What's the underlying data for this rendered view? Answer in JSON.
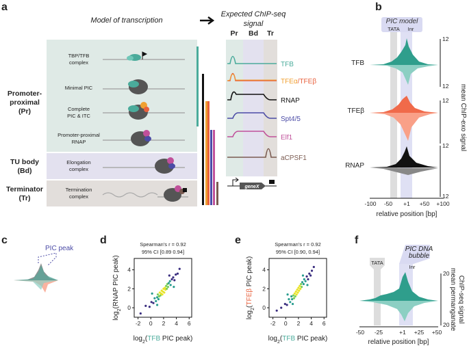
{
  "panel_a": {
    "letter": "a",
    "model_title": "Model of transcription",
    "signal_title": [
      "Expected ChIP-seq",
      "signal"
    ],
    "columns": [
      "Pr",
      "Bd",
      "Tr"
    ],
    "regions": [
      [
        "Promoter-",
        "proximal",
        "(Pr)"
      ],
      [
        "TU body",
        "(Bd)"
      ],
      [
        "Terminator",
        "(Tr)"
      ]
    ],
    "stages": [
      [
        "TBP/TFB",
        "complex"
      ],
      [
        "Minimal PIC"
      ],
      [
        "Complete",
        "PIC & ITC"
      ],
      [
        "Promoter-proximal",
        "RNAP"
      ],
      [
        "Elongation",
        "complex"
      ],
      [
        "Termination",
        "complex"
      ]
    ],
    "signals": [
      {
        "parts": [
          "TFB"
        ],
        "colors": [
          "#4aab9b"
        ]
      },
      {
        "parts": [
          "TFEα",
          "/",
          "TFEβ"
        ],
        "colors": [
          "#f0a030",
          "#e8603c",
          "#e8603c"
        ]
      },
      {
        "parts": [
          "RNAP"
        ],
        "colors": [
          "#111111"
        ]
      },
      {
        "parts": [
          "Spt4/5"
        ],
        "colors": [
          "#4b4ba6"
        ]
      },
      {
        "parts": [
          "Elf1"
        ],
        "colors": [
          "#c0509a"
        ]
      },
      {
        "parts": [
          "aCPSF1"
        ],
        "colors": [
          "#7a5a50"
        ]
      }
    ],
    "gene": "geneX"
  },
  "panel_b": {
    "letter": "b",
    "model": "PIC model",
    "tata": "TATA",
    "inr": "Inr",
    "rows": [
      "TFB",
      "TFEβ",
      "RNAP"
    ],
    "scale": [
      "12",
      "12",
      "12",
      "12",
      "12"
    ],
    "ylabel": "mean ChIP-exo signal",
    "xticks": [
      "-100",
      "-50",
      "+1",
      "+50",
      "+100"
    ],
    "xlabel": "relative position [bp]"
  },
  "panel_c": {
    "letter": "c",
    "peak": "PIC peak"
  },
  "panel_d": {
    "letter": "d",
    "stat": [
      "Spearman's r = 0.92",
      "95% CI [0.89 0.94]"
    ],
    "ylabel": [
      {
        "text": "log",
        "color": "#222222"
      },
      {
        "text": "2",
        "color": "#222222"
      },
      {
        "text": "(RNAP PIC peak)",
        "color": "#222222"
      }
    ],
    "xlabel": [
      {
        "text": "log",
        "color": "#222222"
      },
      {
        "text": "2",
        "color": "#222222"
      },
      {
        "text": "(",
        "color": "#222222"
      },
      {
        "text": "TFB",
        "color": "#4aab9b"
      },
      {
        "text": " PIC peak)",
        "color": "#222222"
      }
    ],
    "xlim": [
      -2.6,
      6.4
    ],
    "ylim": [
      -1,
      5.2
    ],
    "xticks": [
      -2,
      0,
      2,
      4,
      6
    ],
    "yticks": [
      0,
      2,
      4
    ],
    "points": [
      [
        -1.6,
        -0.6
      ],
      [
        -0.8,
        0.2
      ],
      [
        -0.2,
        0.1
      ],
      [
        0.1,
        0.6
      ],
      [
        0.4,
        0.5
      ],
      [
        0.6,
        1.0
      ],
      [
        0.8,
        0.7
      ],
      [
        1.0,
        1.1
      ],
      [
        1.1,
        1.4
      ],
      [
        1.2,
        0.9
      ],
      [
        1.3,
        1.2
      ],
      [
        1.4,
        1.6
      ],
      [
        1.5,
        1.3
      ],
      [
        1.6,
        1.5
      ],
      [
        1.7,
        1.8
      ],
      [
        1.8,
        1.4
      ],
      [
        1.9,
        1.7
      ],
      [
        2.0,
        2.0
      ],
      [
        2.1,
        1.6
      ],
      [
        2.2,
        2.1
      ],
      [
        2.3,
        1.9
      ],
      [
        2.4,
        2.3
      ],
      [
        2.5,
        2.0
      ],
      [
        2.6,
        2.5
      ],
      [
        2.7,
        2.2
      ],
      [
        2.8,
        2.6
      ],
      [
        3.0,
        2.8
      ],
      [
        3.1,
        2.4
      ],
      [
        3.3,
        3.0
      ],
      [
        3.5,
        3.2
      ],
      [
        3.7,
        2.9
      ],
      [
        3.9,
        3.5
      ],
      [
        4.2,
        3.6
      ],
      [
        4.5,
        4.1
      ],
      [
        0.2,
        1.5
      ],
      [
        2.9,
        3.4
      ],
      [
        1.0,
        0.3
      ],
      [
        3.6,
        2.2
      ]
    ]
  },
  "panel_e": {
    "letter": "e",
    "stat": [
      "Spearman's r = 0.92",
      "95% CI [0.90, 0.94]"
    ],
    "ylabel": [
      {
        "text": "log",
        "color": "#222222"
      },
      {
        "text": "2",
        "color": "#222222"
      },
      {
        "text": "(",
        "color": "#222222"
      },
      {
        "text": "TFEβ",
        "color": "#e8603c"
      },
      {
        "text": " PIC peak)",
        "color": "#222222"
      }
    ],
    "xlabel": [
      {
        "text": "log",
        "color": "#222222"
      },
      {
        "text": "2",
        "color": "#222222"
      },
      {
        "text": "(",
        "color": "#222222"
      },
      {
        "text": "TFB",
        "color": "#4aab9b"
      },
      {
        "text": " PIC peak)",
        "color": "#222222"
      }
    ],
    "xlim": [
      -2.6,
      6.4
    ],
    "ylim": [
      -1,
      5.2
    ],
    "xticks": [
      -2,
      0,
      2,
      4,
      6
    ],
    "yticks": [
      0,
      2,
      4
    ],
    "points": [
      [
        -1.4,
        -0.3
      ],
      [
        -0.7,
        0.0
      ],
      [
        -0.1,
        0.4
      ],
      [
        0.2,
        0.3
      ],
      [
        0.5,
        0.9
      ],
      [
        0.7,
        0.6
      ],
      [
        0.9,
        1.2
      ],
      [
        1.0,
        0.9
      ],
      [
        1.2,
        1.3
      ],
      [
        1.3,
        1.0
      ],
      [
        1.4,
        1.5
      ],
      [
        1.5,
        1.2
      ],
      [
        1.6,
        1.7
      ],
      [
        1.7,
        1.4
      ],
      [
        1.8,
        1.9
      ],
      [
        1.9,
        1.6
      ],
      [
        2.0,
        2.1
      ],
      [
        2.1,
        1.8
      ],
      [
        2.2,
        2.3
      ],
      [
        2.3,
        2.0
      ],
      [
        2.4,
        2.5
      ],
      [
        2.5,
        2.2
      ],
      [
        2.6,
        2.7
      ],
      [
        2.8,
        2.5
      ],
      [
        2.9,
        3.0
      ],
      [
        3.1,
        2.8
      ],
      [
        3.3,
        3.3
      ],
      [
        3.5,
        3.0
      ],
      [
        3.7,
        3.6
      ],
      [
        3.9,
        3.4
      ],
      [
        4.1,
        3.9
      ],
      [
        4.4,
        4.3
      ],
      [
        0.3,
        1.4
      ],
      [
        2.7,
        3.4
      ],
      [
        1.1,
        0.4
      ],
      [
        3.4,
        2.4
      ]
    ]
  },
  "panel_f": {
    "letter": "f",
    "tata": "TATA",
    "bubble": [
      "PIC DNA",
      "bubble"
    ],
    "inr": "Inr",
    "scale": [
      "20",
      "20"
    ],
    "ylabel": [
      "mean permanganate",
      "ChIP-seq signal"
    ],
    "xticks": [
      "-50",
      "-25",
      "+1",
      "+25",
      "+50"
    ],
    "xlabel": "relative position [bp]"
  }
}
